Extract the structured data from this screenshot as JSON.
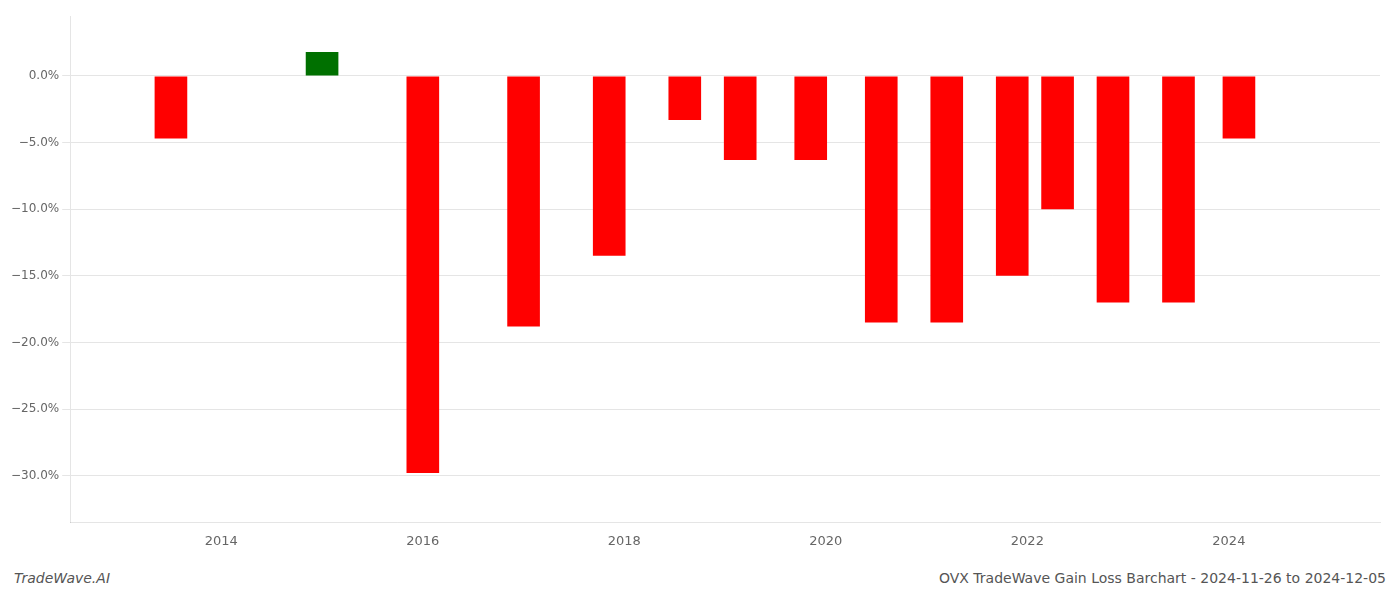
{
  "chart_data": {
    "type": "bar",
    "x": [
      2013.5,
      2015.0,
      2016.0,
      2017.0,
      2017.85,
      2018.6,
      2019.15,
      2019.85,
      2020.55,
      2021.2,
      2021.85,
      2022.3,
      2022.85,
      2023.5,
      2024.1
    ],
    "values": [
      -0.047,
      0.018,
      -0.298,
      -0.188,
      -0.135,
      -0.033,
      -0.063,
      -0.063,
      -0.185,
      -0.185,
      -0.15,
      -0.1,
      -0.17,
      -0.17,
      -0.047
    ],
    "colors": [
      "#ff0000",
      "#007000",
      "#ff0000",
      "#ff0000",
      "#ff0000",
      "#ff0000",
      "#ff0000",
      "#ff0000",
      "#ff0000",
      "#ff0000",
      "#ff0000",
      "#ff0000",
      "#ff0000",
      "#ff0000",
      "#ff0000"
    ],
    "xlim": [
      2012.5,
      2025.5
    ],
    "xticks": [
      2014,
      2016,
      2018,
      2020,
      2022,
      2024
    ],
    "ylim": [
      -0.335,
      0.045
    ],
    "yticks": [
      {
        "value": 0.0,
        "label": "0.0%"
      },
      {
        "value": -0.05,
        "label": "−5.0%"
      },
      {
        "value": -0.1,
        "label": "−10.0%"
      },
      {
        "value": -0.15,
        "label": "−15.0%"
      },
      {
        "value": -0.2,
        "label": "−20.0%"
      },
      {
        "value": -0.25,
        "label": "−25.0%"
      },
      {
        "value": -0.3,
        "label": "−30.0%"
      }
    ],
    "grid": true,
    "annotations": [
      "TradeWave.AI",
      "OVX TradeWave Gain Loss Barchart - 2024-11-26 to 2024-12-05"
    ]
  }
}
